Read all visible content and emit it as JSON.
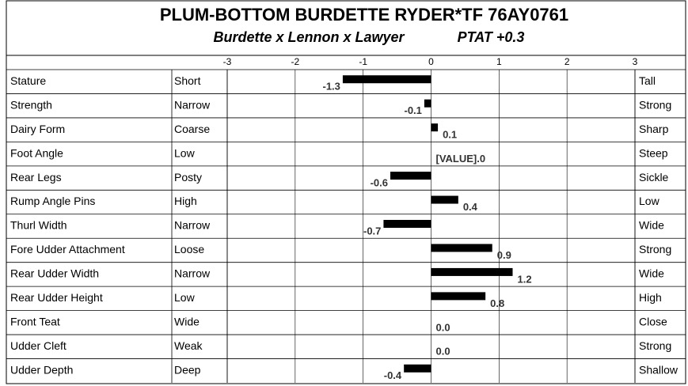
{
  "chart_data": {
    "type": "bar",
    "orientation": "horizontal",
    "title": "PLUM-BOTTOM BURDETTE RYDER*TF  76AY0761",
    "subtitle": "Burdette x Lennon x Lawyer",
    "annotation": "PTAT +0.3",
    "categories": [
      "Stature",
      "Strength",
      "Dairy Form",
      "Foot Angle",
      "Rear Legs",
      "Rump Angle Pins",
      "Thurl Width",
      "Fore Udder Attachment",
      "Rear Udder Width",
      "Rear Udder Height",
      "Front Teat",
      "Udder Cleft",
      "Udder Depth"
    ],
    "low_labels": [
      "Short",
      "Narrow",
      "Coarse",
      "Low",
      "Posty",
      "High",
      "Narrow",
      "Loose",
      "Narrow",
      "Low",
      "Wide",
      "Weak",
      "Deep"
    ],
    "high_labels": [
      "Tall",
      "Strong",
      "Sharp",
      "Steep",
      "Sickle",
      "Low",
      "Wide",
      "Strong",
      "Wide",
      "High",
      "Close",
      "Strong",
      "Shallow"
    ],
    "values": [
      -1.3,
      -0.1,
      0.1,
      0,
      -0.6,
      0.4,
      -0.7,
      0.9,
      1.2,
      0.8,
      0,
      0,
      -0.4
    ],
    "value_labels": [
      "-1.3",
      "-0.1",
      "0.1",
      "[VALUE].0",
      "-0.6",
      "0.4",
      "-0.7",
      "0.9",
      "1.2",
      "0.8",
      "0.0",
      "0.0",
      "-0.4"
    ],
    "color": "#000000",
    "xlim": [
      -3,
      3
    ],
    "xticks": [
      -3,
      -2,
      -1,
      0,
      1,
      2,
      3
    ],
    "grid": true
  }
}
